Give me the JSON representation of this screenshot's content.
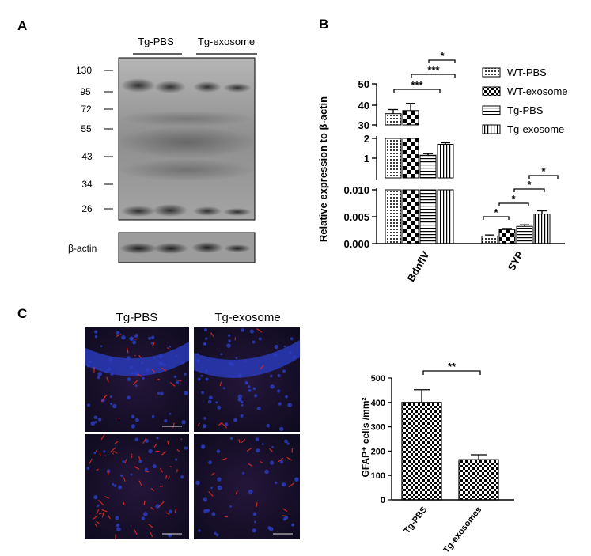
{
  "panels": {
    "a": {
      "letter": "A",
      "groups": [
        "Tg-PBS",
        "Tg-exosome"
      ],
      "mw_markers": [
        "130",
        "95",
        "72",
        "55",
        "43",
        "34",
        "26"
      ],
      "actin_label": "β-actin"
    },
    "b": {
      "letter": "B",
      "ylabel": "Relative expression to β-actin",
      "chart_data": {
        "type": "bar",
        "categories": [
          "BdnfIV",
          "SYP"
        ],
        "series": [
          {
            "name": "WT-PBS",
            "values": [
              35.5,
              0.0014
            ],
            "errors": [
              2.0,
              0.0002
            ]
          },
          {
            "name": "WT-exosome",
            "values": [
              37.0,
              0.0026
            ],
            "errors": [
              3.5,
              0.0002
            ]
          },
          {
            "name": "Tg-PBS",
            "values": [
              1.15,
              0.0032
            ],
            "errors": [
              0.08,
              0.0003
            ]
          },
          {
            "name": "Tg-exosome",
            "values": [
              1.7,
              0.0055
            ],
            "errors": [
              0.08,
              0.0006
            ]
          }
        ],
        "broken_y_axis": [
          {
            "range": [
              30,
              50
            ],
            "ticks": [
              "30",
              "40",
              "50"
            ]
          },
          {
            "range": [
              0,
              2
            ],
            "ticks": [
              "1",
              "2"
            ]
          },
          {
            "range": [
              0,
              0.01
            ],
            "ticks": [
              "0.000",
              "0.005",
              "0.010"
            ]
          }
        ],
        "legend_position": "top-right",
        "significance": [
          {
            "category": "BdnfIV",
            "label": "*"
          },
          {
            "category": "BdnfIV",
            "label": "***"
          },
          {
            "category": "BdnfIV",
            "label": "***"
          },
          {
            "category": "SYP",
            "label": "*"
          },
          {
            "category": "SYP",
            "label": "*"
          },
          {
            "category": "SYP",
            "label": "*"
          },
          {
            "category": "SYP",
            "label": "*"
          }
        ]
      }
    },
    "c": {
      "letter": "C",
      "micrograph_titles": [
        "Tg-PBS",
        "Tg-exosome"
      ],
      "ylabel": "GFAP⁺ cells /mm²",
      "chart_data": {
        "type": "bar",
        "categories": [
          "Tg-PBS",
          "Tg-exosomes"
        ],
        "values": [
          400,
          165
        ],
        "errors": [
          52,
          20
        ],
        "ylim": [
          0,
          500
        ],
        "yticks": [
          "0",
          "100",
          "200",
          "300",
          "400",
          "500"
        ],
        "significance": "**"
      }
    }
  },
  "colors": {
    "dapi": "#2a3cc0",
    "gfap": "#e02a1e",
    "blot_bg": "#9a9a9a"
  }
}
